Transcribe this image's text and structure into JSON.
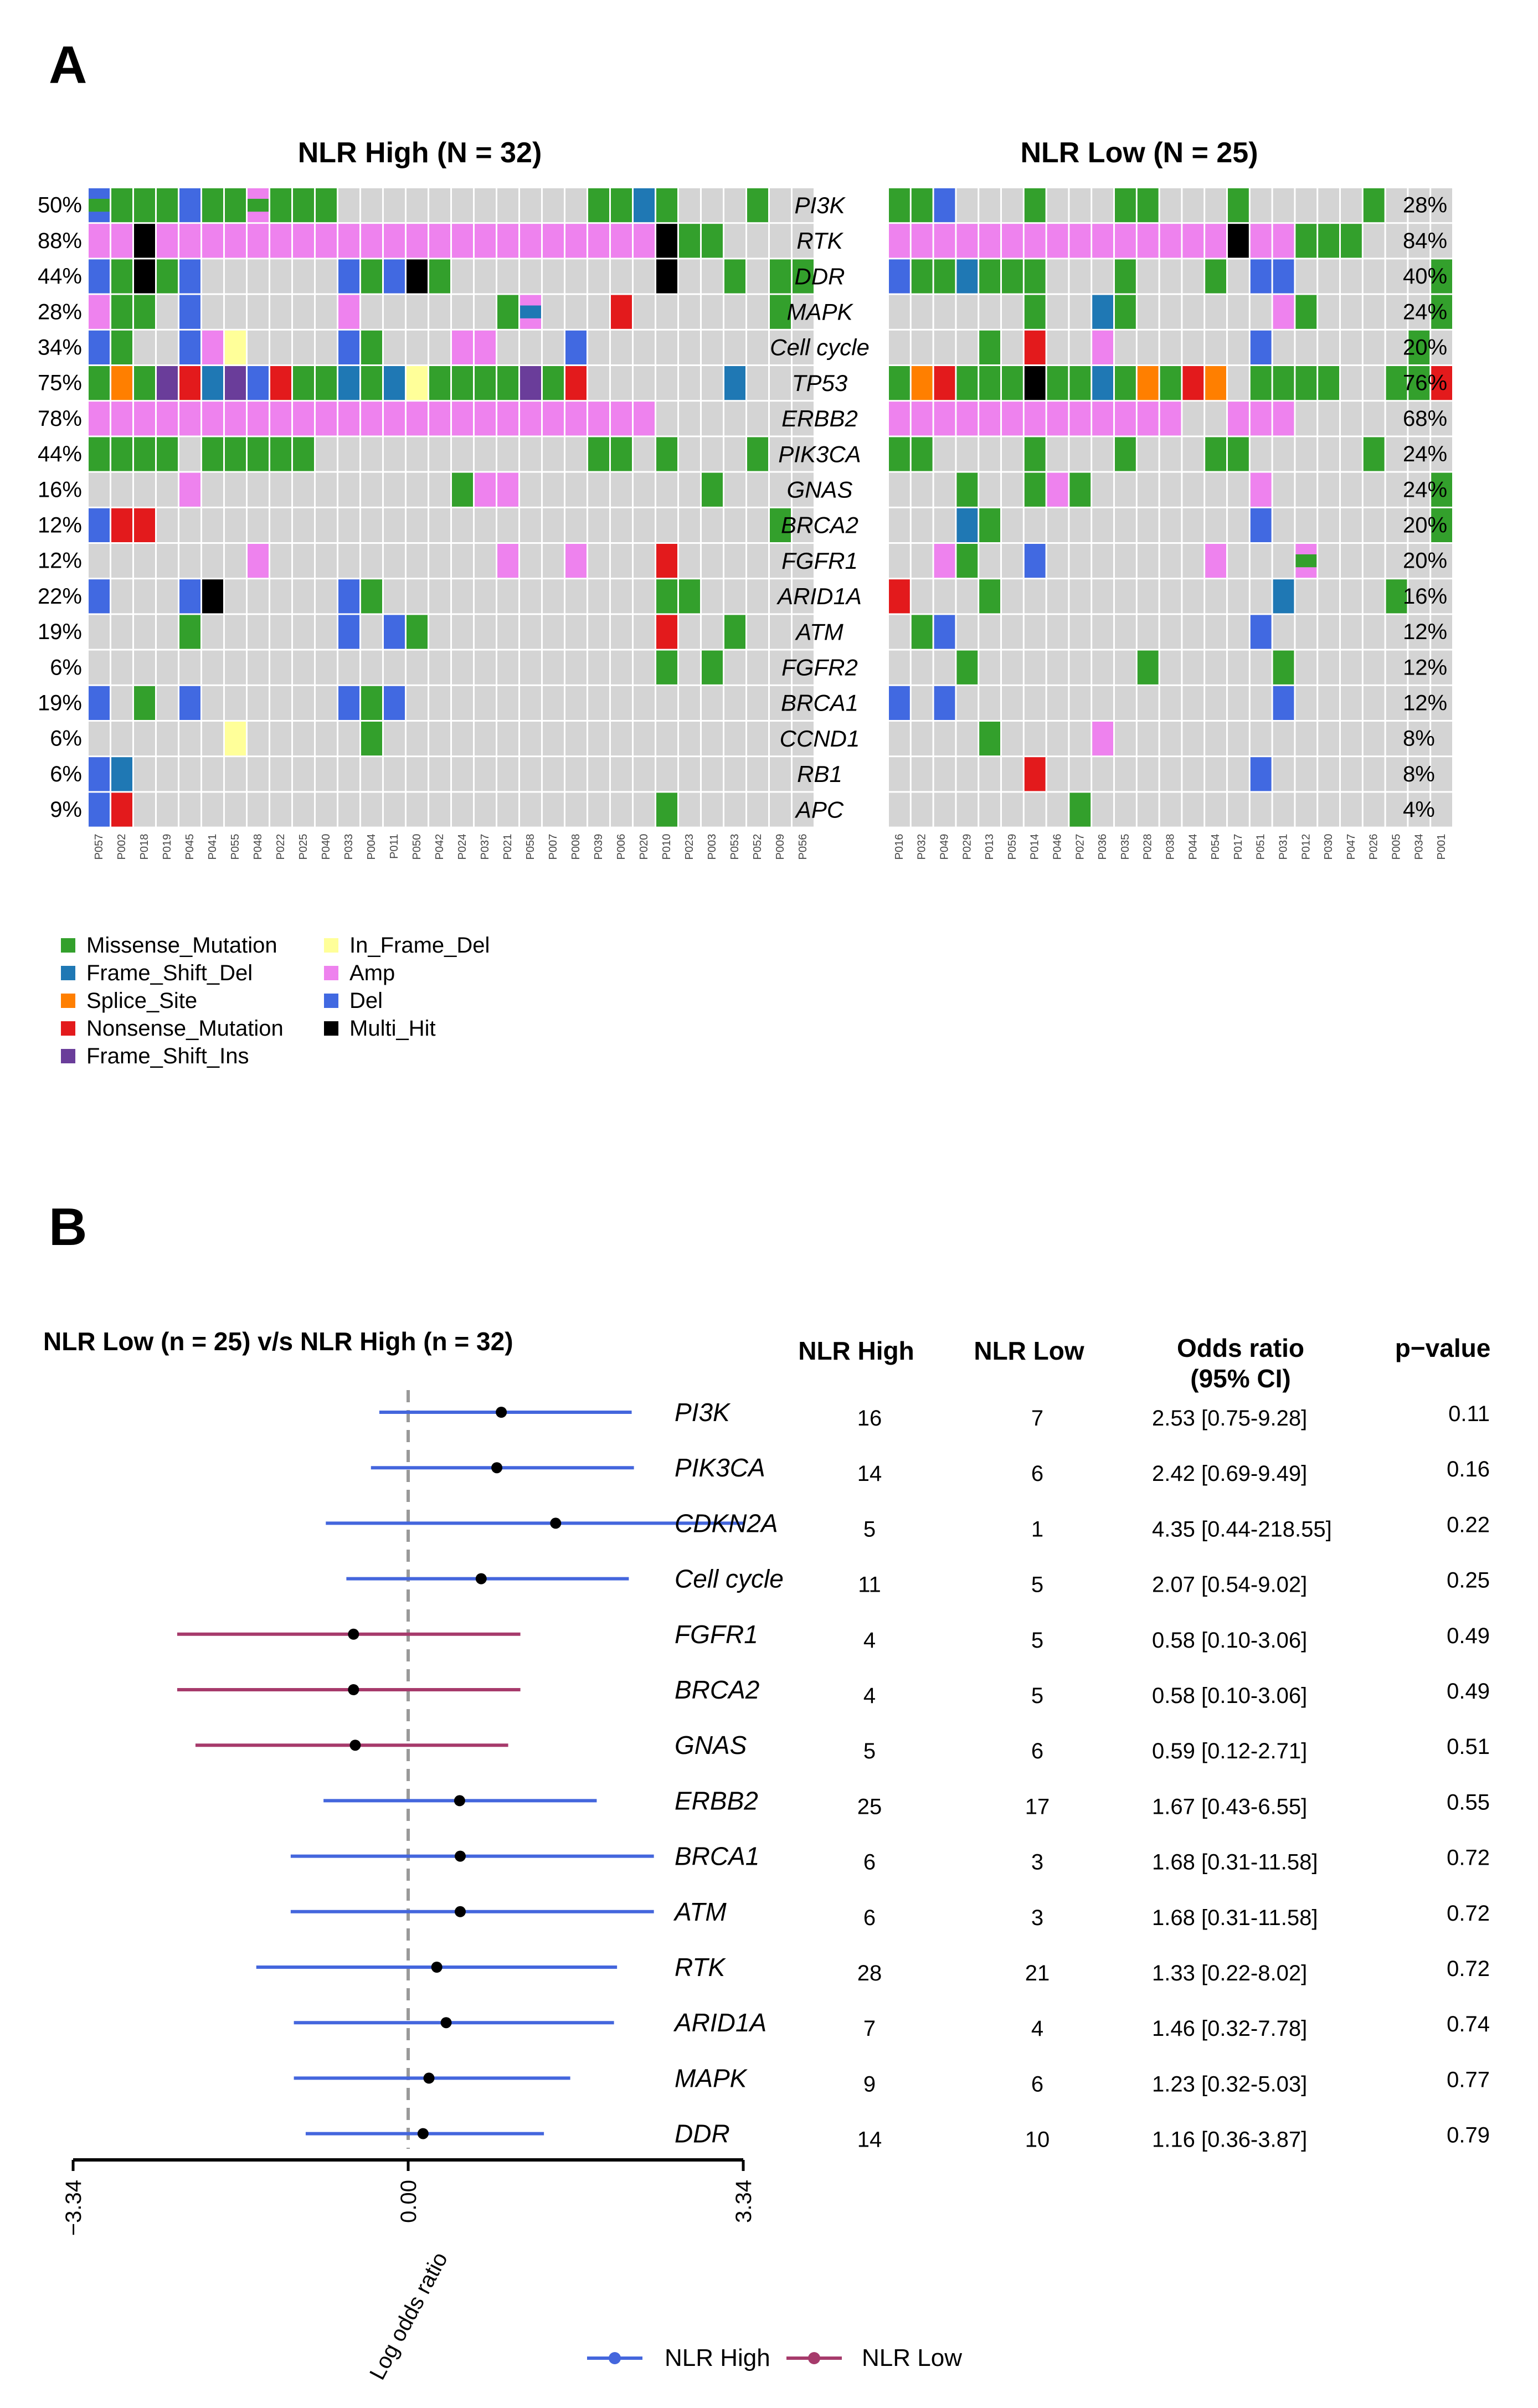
{
  "panel_a": {
    "letter": "A",
    "colors": {
      "background": "#d4d4d4",
      "Missense_Mutation": "#33a02c",
      "Frame_Shift_Del": "#1f78b4",
      "Splice_Site": "#ff7f00",
      "Nonsense_Mutation": "#e31a1c",
      "Frame_Shift_Ins": "#6a3d9a",
      "In_Frame_Del": "#ffff99",
      "Amp": "#ee82ee",
      "Del": "#4169e1",
      "Multi_Hit": "#000000"
    },
    "legend": [
      {
        "key": "Missense_Mutation",
        "label": "Missense_Mutation"
      },
      {
        "key": "Frame_Shift_Del",
        "label": "Frame_Shift_Del"
      },
      {
        "key": "Splice_Site",
        "label": "Splice_Site"
      },
      {
        "key": "Nonsense_Mutation",
        "label": "Nonsense_Mutation"
      },
      {
        "key": "Frame_Shift_Ins",
        "label": "Frame_Shift_Ins"
      },
      {
        "key": "In_Frame_Del",
        "label": "In_Frame_Del"
      },
      {
        "key": "Amp",
        "label": "Amp"
      },
      {
        "key": "Del",
        "label": "Del"
      },
      {
        "key": "Multi_Hit",
        "label": "Multi_Hit"
      }
    ],
    "genes": [
      "PI3K",
      "RTK",
      "DDR",
      "MAPK",
      "Cell cycle",
      "TP53",
      "ERBB2",
      "PIK3CA",
      "GNAS",
      "BRCA2",
      "FGFR1",
      "ARID1A",
      "ATM",
      "FGFR2",
      "BRCA1",
      "CCND1",
      "RB1",
      "APC"
    ],
    "high": {
      "title": "NLR High (N = 32)",
      "pcts": [
        "50%",
        "88%",
        "44%",
        "28%",
        "34%",
        "75%",
        "78%",
        "44%",
        "16%",
        "12%",
        "12%",
        "22%",
        "19%",
        "6%",
        "19%",
        "6%",
        "6%",
        "9%"
      ],
      "samples": [
        "P057",
        "P002",
        "P018",
        "P019",
        "P045",
        "P041",
        "P055",
        "P048",
        "P022",
        "P025",
        "P040",
        "P033",
        "P004",
        "P011",
        "P050",
        "P042",
        "P024",
        "P037",
        "P021",
        "P058",
        "P007",
        "P008",
        "P039",
        "P006",
        "P020",
        "P010",
        "P023",
        "P003",
        "P053",
        "P052",
        "P009",
        "P056"
      ],
      "calls": [
        "PI3K|0|D",
        "PI3K|0|M",
        "PI3K|1|M",
        "PI3K|2|M",
        "PI3K|3|M",
        "PI3K|4|D",
        "PI3K|5|M",
        "PI3K|6|M",
        "PI3K|7|A",
        "PI3K|7|M",
        "PI3K|8|M",
        "PI3K|9|M",
        "PI3K|10|M",
        "PI3K|22|M",
        "PI3K|23|M",
        "PI3K|24|F",
        "PI3K|25|M",
        "PI3K|29|M",
        "RTK|0|A",
        "RTK|1|A",
        "RTK|2|X",
        "RTK|3|A",
        "RTK|4|A",
        "RTK|5|A",
        "RTK|6|A",
        "RTK|7|A",
        "RTK|8|A",
        "RTK|9|A",
        "RTK|10|A",
        "RTK|11|A",
        "RTK|12|A",
        "RTK|13|A",
        "RTK|14|A",
        "RTK|15|A",
        "RTK|16|A",
        "RTK|17|A",
        "RTK|18|A",
        "RTK|19|A",
        "RTK|20|A",
        "RTK|21|A",
        "RTK|22|A",
        "RTK|23|A",
        "RTK|24|A",
        "RTK|25|X",
        "RTK|26|M",
        "RTK|27|M",
        "DDR|0|D",
        "DDR|1|M",
        "DDR|2|X",
        "DDR|3|M",
        "DDR|4|D",
        "DDR|11|D",
        "DDR|12|M",
        "DDR|13|D",
        "DDR|14|X",
        "DDR|15|M",
        "DDR|25|X",
        "DDR|28|M",
        "DDR|30|M",
        "DDR|31|M",
        "MAPK|0|A",
        "MAPK|1|M",
        "MAPK|2|M",
        "MAPK|4|D",
        "MAPK|11|A",
        "MAPK|18|M",
        "MAPK|19|F",
        "MAPK|19|A",
        "MAPK|23|N",
        "MAPK|30|M",
        "Cell cycle|0|D",
        "Cell cycle|1|M",
        "Cell cycle|4|D",
        "Cell cycle|5|A",
        "Cell cycle|6|Y",
        "Cell cycle|11|D",
        "Cell cycle|12|M",
        "Cell cycle|16|A",
        "Cell cycle|17|A",
        "Cell cycle|21|D",
        "TP53|0|M",
        "TP53|1|S",
        "TP53|2|M",
        "TP53|3|I",
        "TP53|4|N",
        "TP53|5|F",
        "TP53|6|I",
        "TP53|7|D",
        "TP53|8|N",
        "TP53|9|M",
        "TP53|10|M",
        "TP53|11|F",
        "TP53|12|M",
        "TP53|13|F",
        "TP53|14|Y",
        "TP53|15|M",
        "TP53|16|M",
        "TP53|17|M",
        "TP53|18|M",
        "TP53|19|I",
        "TP53|20|M",
        "TP53|21|N",
        "TP53|28|F",
        "ERBB2|0|A",
        "ERBB2|1|A",
        "ERBB2|2|A",
        "ERBB2|3|A",
        "ERBB2|4|A",
        "ERBB2|5|A",
        "ERBB2|6|A",
        "ERBB2|7|A",
        "ERBB2|8|A",
        "ERBB2|9|A",
        "ERBB2|10|A",
        "ERBB2|11|A",
        "ERBB2|12|A",
        "ERBB2|13|A",
        "ERBB2|14|A",
        "ERBB2|15|A",
        "ERBB2|16|A",
        "ERBB2|17|A",
        "ERBB2|18|A",
        "ERBB2|19|A",
        "ERBB2|20|A",
        "ERBB2|21|A",
        "ERBB2|22|A",
        "ERBB2|23|A",
        "ERBB2|24|A",
        "PIK3CA|0|M",
        "PIK3CA|1|M",
        "PIK3CA|2|M",
        "PIK3CA|3|M",
        "PIK3CA|5|M",
        "PIK3CA|6|M",
        "PIK3CA|7|M",
        "PIK3CA|8|M",
        "PIK3CA|9|M",
        "PIK3CA|22|M",
        "PIK3CA|23|M",
        "PIK3CA|25|M",
        "PIK3CA|29|M",
        "GNAS|4|A",
        "GNAS|16|M",
        "GNAS|17|A",
        "GNAS|18|A",
        "GNAS|27|M",
        "BRCA2|0|D",
        "BRCA2|1|N",
        "BRCA2|2|N",
        "BRCA2|30|M",
        "FGFR1|7|A",
        "FGFR1|18|A",
        "FGFR1|21|A",
        "FGFR1|25|N",
        "ARID1A|0|D",
        "ARID1A|4|D",
        "ARID1A|5|X",
        "ARID1A|11|D",
        "ARID1A|12|M",
        "ARID1A|25|M",
        "ARID1A|26|M",
        "ATM|4|M",
        "ATM|11|D",
        "ATM|13|D",
        "ATM|14|M",
        "ATM|25|N",
        "ATM|28|M",
        "FGFR2|25|M",
        "FGFR2|27|M",
        "BRCA1|0|D",
        "BRCA1|2|M",
        "BRCA1|4|D",
        "BRCA1|11|D",
        "BRCA1|12|M",
        "BRCA1|13|D",
        "CCND1|6|Y",
        "CCND1|12|M",
        "RB1|0|D",
        "RB1|1|F",
        "APC|0|D",
        "APC|1|N",
        "APC|25|M"
      ]
    },
    "low": {
      "title": "NLR Low (N = 25)",
      "pcts": [
        "28%",
        "84%",
        "40%",
        "24%",
        "20%",
        "76%",
        "68%",
        "24%",
        "24%",
        "20%",
        "20%",
        "16%",
        "12%",
        "12%",
        "12%",
        "8%",
        "8%",
        "4%"
      ],
      "samples": [
        "P016",
        "P032",
        "P049",
        "P029",
        "P013",
        "P059",
        "P014",
        "P046",
        "P027",
        "P036",
        "P035",
        "P028",
        "P038",
        "P044",
        "P054",
        "P017",
        "P051",
        "P031",
        "P012",
        "P030",
        "P047",
        "P026",
        "P005",
        "P034",
        "P001"
      ],
      "calls": [
        "PI3K|0|M",
        "PI3K|1|M",
        "PI3K|2|D",
        "PI3K|6|M",
        "PI3K|10|M",
        "PI3K|11|M",
        "PI3K|15|M",
        "PI3K|21|M",
        "RTK|0|A",
        "RTK|1|A",
        "RTK|2|A",
        "RTK|3|A",
        "RTK|4|A",
        "RTK|5|A",
        "RTK|6|A",
        "RTK|7|A",
        "RTK|8|A",
        "RTK|9|A",
        "RTK|10|A",
        "RTK|11|A",
        "RTK|12|A",
        "RTK|13|A",
        "RTK|14|A",
        "RTK|15|X",
        "RTK|16|A",
        "RTK|17|A",
        "RTK|18|M",
        "RTK|19|M",
        "RTK|20|M",
        "DDR|0|D",
        "DDR|1|M",
        "DDR|2|M",
        "DDR|3|F",
        "DDR|4|M",
        "DDR|5|M",
        "DDR|6|M",
        "DDR|10|M",
        "DDR|14|M",
        "DDR|16|D",
        "DDR|17|D",
        "DDR|24|M",
        "MAPK|6|M",
        "MAPK|9|F",
        "MAPK|10|M",
        "MAPK|17|A",
        "MAPK|18|M",
        "MAPK|24|M",
        "Cell cycle|4|M",
        "Cell cycle|6|N",
        "Cell cycle|9|A",
        "Cell cycle|16|D",
        "Cell cycle|23|M",
        "TP53|0|M",
        "TP53|1|S",
        "TP53|2|N",
        "TP53|3|M",
        "TP53|4|M",
        "TP53|5|M",
        "TP53|6|X",
        "TP53|7|M",
        "TP53|8|M",
        "TP53|9|F",
        "TP53|10|M",
        "TP53|11|S",
        "TP53|12|M",
        "TP53|13|N",
        "TP53|14|S",
        "TP53|16|M",
        "TP53|17|M",
        "TP53|18|M",
        "TP53|19|M",
        "TP53|22|M",
        "TP53|23|M",
        "TP53|24|N",
        "ERBB2|0|A",
        "ERBB2|1|A",
        "ERBB2|2|A",
        "ERBB2|3|A",
        "ERBB2|4|A",
        "ERBB2|5|A",
        "ERBB2|6|A",
        "ERBB2|7|A",
        "ERBB2|8|A",
        "ERBB2|9|A",
        "ERBB2|10|A",
        "ERBB2|11|A",
        "ERBB2|12|A",
        "ERBB2|15|A",
        "ERBB2|16|A",
        "ERBB2|17|A",
        "PIK3CA|0|M",
        "PIK3CA|1|M",
        "PIK3CA|6|M",
        "PIK3CA|10|M",
        "PIK3CA|14|M",
        "PIK3CA|15|M",
        "PIK3CA|21|M",
        "GNAS|3|M",
        "GNAS|6|M",
        "GNAS|7|A",
        "GNAS|8|M",
        "GNAS|16|A",
        "GNAS|24|M",
        "BRCA2|3|F",
        "BRCA2|4|M",
        "BRCA2|16|D",
        "BRCA2|24|M",
        "FGFR1|2|A",
        "FGFR1|3|M",
        "FGFR1|6|D",
        "FGFR1|14|A",
        "FGFR1|18|M",
        "FGFR1|18|A",
        "ARID1A|0|N",
        "ARID1A|4|M",
        "ARID1A|17|F",
        "ARID1A|22|M",
        "ATM|1|M",
        "ATM|2|D",
        "ATM|16|D",
        "FGFR2|3|M",
        "FGFR2|11|M",
        "FGFR2|17|M",
        "BRCA1|0|D",
        "BRCA1|2|D",
        "BRCA1|17|D",
        "CCND1|4|M",
        "CCND1|9|A",
        "RB1|6|N",
        "RB1|16|D",
        "APC|8|M"
      ]
    }
  },
  "panel_b": {
    "letter": "B",
    "title": "NLR Low (n = 25) v/s NLR High (n = 32)",
    "col_headers": {
      "high": "NLR High",
      "low": "NLR Low",
      "or_line1": "Odds ratio",
      "or_line2": "(95% CI)",
      "p": "p−value"
    },
    "legend": {
      "high": "NLR High",
      "low": "NLR Low"
    },
    "colors": {
      "high": "#4466dd",
      "low": "#a63a6b"
    }
  },
  "chart_data": [
    {
      "type": "heatmap",
      "title": "NLR High (N = 32)",
      "rows": [
        "PI3K",
        "RTK",
        "DDR",
        "MAPK",
        "Cell cycle",
        "TP53",
        "ERBB2",
        "PIK3CA",
        "GNAS",
        "BRCA2",
        "FGFR1",
        "ARID1A",
        "ATM",
        "FGFR2",
        "BRCA1",
        "CCND1",
        "RB1",
        "APC"
      ],
      "row_pct": [
        50,
        88,
        44,
        28,
        34,
        75,
        78,
        44,
        16,
        12,
        12,
        22,
        19,
        6,
        19,
        6,
        6,
        9
      ],
      "n_samples": 32
    },
    {
      "type": "heatmap",
      "title": "NLR Low (N = 25)",
      "rows": [
        "PI3K",
        "RTK",
        "DDR",
        "MAPK",
        "Cell cycle",
        "TP53",
        "ERBB2",
        "PIK3CA",
        "GNAS",
        "BRCA2",
        "FGFR1",
        "ARID1A",
        "ATM",
        "FGFR2",
        "BRCA1",
        "CCND1",
        "RB1",
        "APC"
      ],
      "row_pct": [
        28,
        84,
        40,
        24,
        20,
        76,
        68,
        24,
        24,
        20,
        20,
        16,
        12,
        12,
        12,
        8,
        8,
        4
      ],
      "n_samples": 25
    },
    {
      "type": "scatter",
      "title": "NLR Low (n = 25) v/s NLR High (n = 32)",
      "xlabel": "Log odds ratio",
      "xlim": [
        -3.34,
        3.34
      ],
      "ticks": [
        "−3.34",
        "0.00",
        "3.34"
      ],
      "rows": [
        {
          "gene": "PI3K",
          "high": "16",
          "low": "7",
          "or_text": "2.53 [0.75-9.28]",
          "p": "0.11",
          "or": 2.53,
          "lo": 0.75,
          "hi": 9.28,
          "group": "high"
        },
        {
          "gene": "PIK3CA",
          "high": "14",
          "low": "6",
          "or_text": "2.42 [0.69-9.49]",
          "p": "0.16",
          "or": 2.42,
          "lo": 0.69,
          "hi": 9.49,
          "group": "high"
        },
        {
          "gene": "CDKN2A",
          "high": "5",
          "low": "1",
          "or_text": "4.35 [0.44-218.55]",
          "p": "0.22",
          "or": 4.35,
          "lo": 0.44,
          "hi": 218.55,
          "group": "high"
        },
        {
          "gene": "Cell cycle",
          "high": "11",
          "low": "5",
          "or_text": "2.07 [0.54-9.02]",
          "p": "0.25",
          "or": 2.07,
          "lo": 0.54,
          "hi": 9.02,
          "group": "high"
        },
        {
          "gene": "FGFR1",
          "high": "4",
          "low": "5",
          "or_text": "0.58 [0.10-3.06]",
          "p": "0.49",
          "or": 0.58,
          "lo": 0.1,
          "hi": 3.06,
          "group": "low"
        },
        {
          "gene": "BRCA2",
          "high": "4",
          "low": "5",
          "or_text": "0.58 [0.10-3.06]",
          "p": "0.49",
          "or": 0.58,
          "lo": 0.1,
          "hi": 3.06,
          "group": "low"
        },
        {
          "gene": "GNAS",
          "high": "5",
          "low": "6",
          "or_text": "0.59 [0.12-2.71]",
          "p": "0.51",
          "or": 0.59,
          "lo": 0.12,
          "hi": 2.71,
          "group": "low"
        },
        {
          "gene": "ERBB2",
          "high": "25",
          "low": "17",
          "or_text": "1.67 [0.43-6.55]",
          "p": "0.55",
          "or": 1.67,
          "lo": 0.43,
          "hi": 6.55,
          "group": "high"
        },
        {
          "gene": "BRCA1",
          "high": "6",
          "low": "3",
          "or_text": "1.68 [0.31-11.58]",
          "p": "0.72",
          "or": 1.68,
          "lo": 0.31,
          "hi": 11.58,
          "group": "high"
        },
        {
          "gene": "ATM",
          "high": "6",
          "low": "3",
          "or_text": "1.68 [0.31-11.58]",
          "p": "0.72",
          "or": 1.68,
          "lo": 0.31,
          "hi": 11.58,
          "group": "high"
        },
        {
          "gene": "RTK",
          "high": "28",
          "low": "21",
          "or_text": "1.33 [0.22-8.02]",
          "p": "0.72",
          "or": 1.33,
          "lo": 0.22,
          "hi": 8.02,
          "group": "high"
        },
        {
          "gene": "ARID1A",
          "high": "7",
          "low": "4",
          "or_text": "1.46 [0.32-7.78]",
          "p": "0.74",
          "or": 1.46,
          "lo": 0.32,
          "hi": 7.78,
          "group": "high"
        },
        {
          "gene": "MAPK",
          "high": "9",
          "low": "6",
          "or_text": "1.23 [0.32-5.03]",
          "p": "0.77",
          "or": 1.23,
          "lo": 0.32,
          "hi": 5.03,
          "group": "high"
        },
        {
          "gene": "DDR",
          "high": "14",
          "low": "10",
          "or_text": "1.16 [0.36-3.87]",
          "p": "0.79",
          "or": 1.16,
          "lo": 0.36,
          "hi": 3.87,
          "group": "high"
        }
      ]
    }
  ]
}
